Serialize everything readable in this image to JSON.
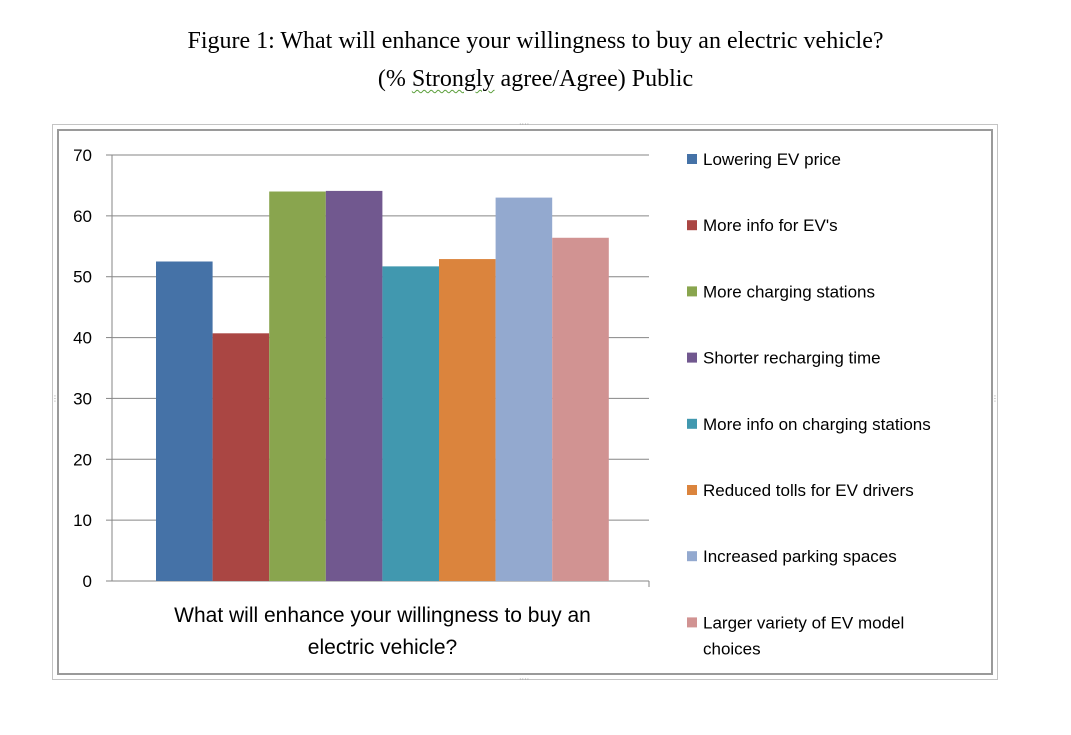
{
  "figure": {
    "title_line1": "Figure 1: What will enhance your willingness to buy an electric vehicle?",
    "title_line2_prefix": "(% ",
    "title_line2_squiggle": "Strongly",
    "title_line2_suffix": " agree/Agree) Public"
  },
  "chart_data": {
    "type": "bar",
    "title": "",
    "xlabel": "What will enhance your willingness to buy an electric vehicle?",
    "ylabel": "",
    "categories": [
      "What will enhance your willingness to buy an electric vehicle?"
    ],
    "ylim": [
      0,
      70
    ],
    "yticks": [
      0,
      10,
      20,
      30,
      40,
      50,
      60,
      70
    ],
    "grid": true,
    "legend_position": "right",
    "series": [
      {
        "name": "Lowering EV price",
        "values": [
          52.5
        ],
        "color": "#4572A7"
      },
      {
        "name": "More info for EV's",
        "values": [
          40.7
        ],
        "color": "#AA4643"
      },
      {
        "name": "More charging stations",
        "values": [
          64
        ],
        "color": "#89A54E"
      },
      {
        "name": "Shorter recharging time",
        "values": [
          64.1
        ],
        "color": "#71588F"
      },
      {
        "name": "More info on charging stations",
        "values": [
          51.7
        ],
        "color": "#4198AF"
      },
      {
        "name": "Reduced tolls for EV drivers",
        "values": [
          52.9
        ],
        "color": "#DB843D"
      },
      {
        "name": "Increased parking spaces",
        "values": [
          63
        ],
        "color": "#93A9CF"
      },
      {
        "name": "Larger variety of EV model choices",
        "values": [
          56.4
        ],
        "color": "#D19392"
      }
    ]
  }
}
